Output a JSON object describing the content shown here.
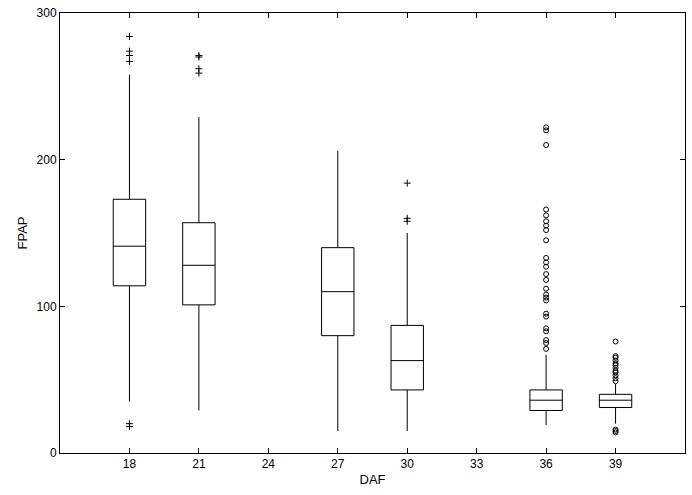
{
  "chart_data": {
    "type": "box",
    "x_label": "DAF",
    "y_label": "FPAP",
    "xlim": [
      15,
      42
    ],
    "xticks": [
      18,
      21,
      24,
      27,
      30,
      33,
      36,
      39
    ],
    "ylim": [
      0,
      300
    ],
    "yticks": [
      0,
      100,
      200,
      300
    ],
    "grid": false,
    "color": "#000000",
    "boxes": [
      {
        "x": 18,
        "lower_whisker": 35,
        "q1": 114,
        "median": 141,
        "q3": 173,
        "upper_whisker": 258,
        "outliers": [
          284,
          274,
          271,
          267,
          20,
          18
        ],
        "marker": "plus"
      },
      {
        "x": 21,
        "lower_whisker": 29,
        "q1": 101,
        "median": 128,
        "q3": 157,
        "upper_whisker": 229,
        "outliers": [
          271,
          270,
          262,
          259
        ],
        "marker": "plus"
      },
      {
        "x": 27,
        "lower_whisker": 15,
        "q1": 80,
        "median": 110,
        "q3": 140,
        "upper_whisker": 206,
        "outliers": [],
        "marker": "plus"
      },
      {
        "x": 30,
        "lower_whisker": 15,
        "q1": 43,
        "median": 63,
        "q3": 87,
        "upper_whisker": 150,
        "outliers": [
          184,
          160,
          158
        ],
        "marker": "plus"
      },
      {
        "x": 36,
        "lower_whisker": 19,
        "q1": 29,
        "median": 36,
        "q3": 43,
        "upper_whisker": 67,
        "outliers": [
          222,
          220,
          210,
          166,
          162,
          158,
          155,
          152,
          145,
          133,
          130,
          127,
          122,
          118,
          112,
          108,
          106,
          104,
          95,
          93,
          85,
          83,
          77,
          75,
          71
        ],
        "marker": "circle"
      },
      {
        "x": 39,
        "lower_whisker": 20,
        "q1": 31,
        "median": 36,
        "q3": 40,
        "upper_whisker": 47,
        "outliers": [
          76,
          66,
          65,
          63,
          61,
          60,
          58,
          56,
          55,
          53,
          51,
          49,
          16,
          15,
          14
        ],
        "marker": "circle"
      }
    ]
  }
}
